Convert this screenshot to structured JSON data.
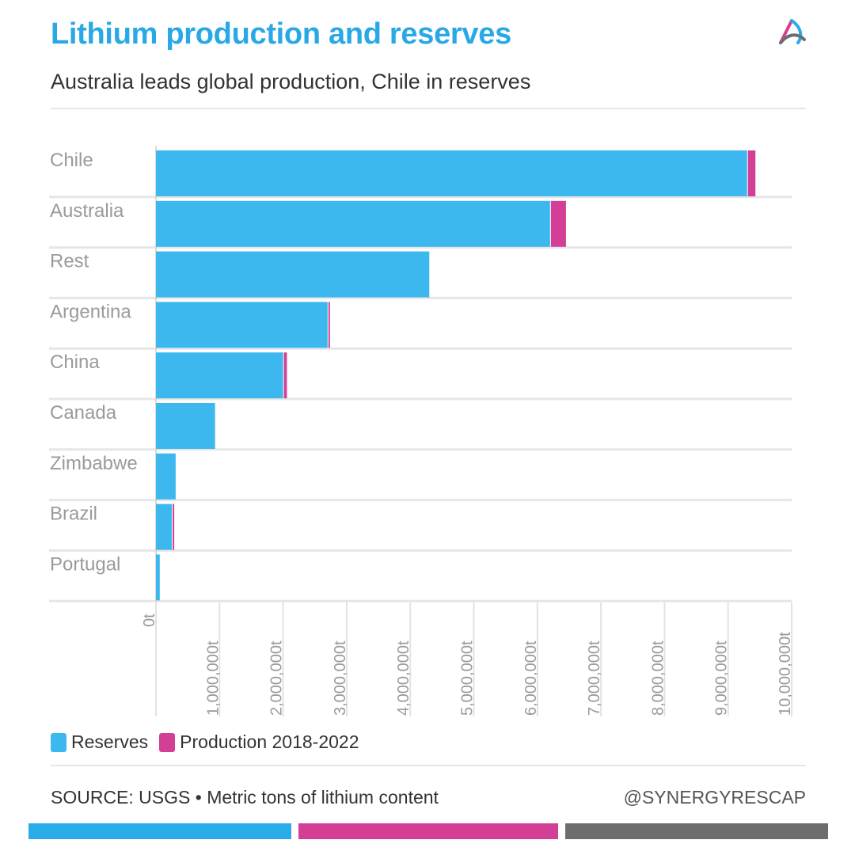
{
  "header": {
    "title": "Lithium production and reserves",
    "subtitle": "Australia leads global production, Chile in reserves"
  },
  "colors": {
    "reserves": "#3db8ef",
    "production": "#d43f96",
    "accent_blue": "#2aace8",
    "accent_pink": "#d43f96",
    "accent_gray": "#6d6d70"
  },
  "chart_data": {
    "type": "bar",
    "orientation": "horizontal",
    "stacked": true,
    "title": "Lithium production and reserves",
    "subtitle": "Australia leads global production, Chile in reserves",
    "categories": [
      "Chile",
      "Australia",
      "Rest",
      "Argentina",
      "China",
      "Canada",
      "Zimbabwe",
      "Brazil",
      "Portugal"
    ],
    "series": [
      {
        "name": "Reserves",
        "values": [
          9300000,
          6200000,
          4300000,
          2700000,
          2000000,
          930000,
          310000,
          250000,
          60000
        ]
      },
      {
        "name": "Production 2018-2022",
        "values": [
          130000,
          250000,
          0,
          30000,
          60000,
          0,
          0,
          10000,
          0
        ]
      }
    ],
    "xlim": [
      0,
      10000000
    ],
    "xticks": [
      "0t",
      "1,000,000t",
      "2,000,000t",
      "3,000,000t",
      "4,000,000t",
      "5,000,000t",
      "6,000,000t",
      "7,000,000t",
      "8,000,000t",
      "9,000,000t",
      "10,000,000t"
    ],
    "xlabel": "",
    "ylabel": "",
    "grid": true,
    "legend": [
      "Reserves",
      "Production 2018-2022"
    ]
  },
  "legend": {
    "reserves_label": "Reserves",
    "production_label": "Production 2018-2022"
  },
  "footer": {
    "source": "SOURCE: USGS • Metric tons of lithium content",
    "handle": "@SYNERGYRESCAP"
  }
}
